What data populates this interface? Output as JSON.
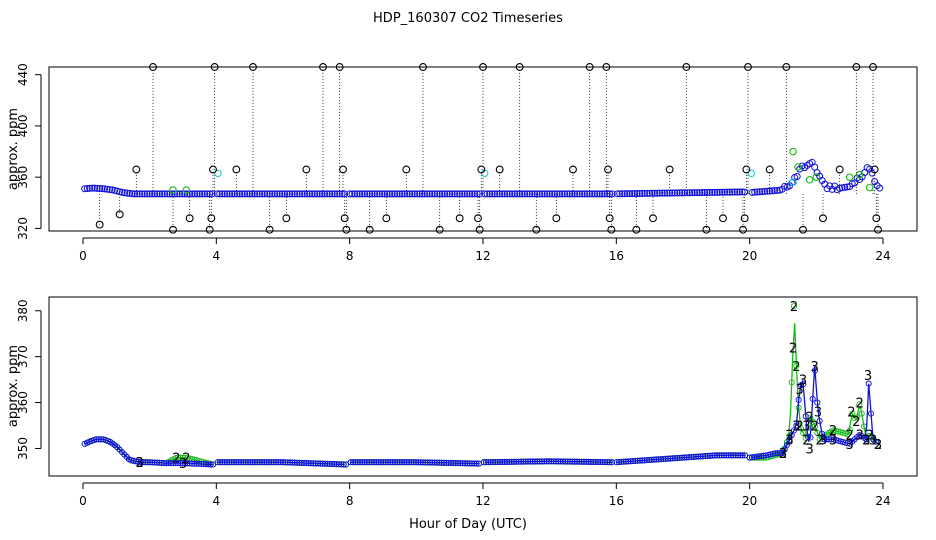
{
  "title": "HDP_160307  CO2 Timeseries",
  "xlabel": "Hour of Day (UTC)",
  "colors": {
    "black": "#000000",
    "cyan": "#22c8e0",
    "blue": "#1010d8",
    "green": "#16b816"
  },
  "chart_data": [
    {
      "type": "scatter",
      "title": "HDP_160307  CO2 Timeseries",
      "xlabel": "",
      "ylabel": "approx. ppm",
      "xlim": [
        0,
        24
      ],
      "ylim": [
        318,
        446
      ],
      "xticks": [
        "0",
        "4",
        "8",
        "12",
        "16",
        "20",
        "24"
      ],
      "yticks": [
        "320",
        "360",
        "400",
        "440"
      ],
      "grid": false,
      "legend": "none",
      "series": [
        {
          "marker": "circle-blue",
          "values": [
            [
              0.05,
              351
            ],
            [
              0.3,
              351.5
            ],
            [
              0.6,
              351
            ],
            [
              0.9,
              350
            ],
            [
              1.2,
              348
            ],
            [
              1.5,
              347
            ],
            [
              2,
              347
            ],
            [
              4,
              347
            ],
            [
              8,
              347
            ],
            [
              12,
              347
            ],
            [
              16,
              347
            ],
            [
              19.8,
              348.5
            ],
            [
              20,
              348
            ],
            [
              20.5,
              349
            ],
            [
              21,
              350
            ],
            [
              21.4,
              360
            ],
            [
              21.5,
              367
            ],
            [
              21.9,
              370
            ],
            [
              22.3,
              352
            ],
            [
              23,
              352
            ],
            [
              23.6,
              368
            ],
            [
              23.8,
              352
            ]
          ]
        },
        {
          "marker": "circle-black",
          "values": [
            [
              0.5,
              323
            ],
            [
              1.1,
              331
            ],
            [
              1.6,
              366
            ],
            [
              2.1,
              446
            ],
            [
              2.7,
              319
            ],
            [
              3.2,
              328
            ],
            [
              3.8,
              319
            ],
            [
              3.85,
              328
            ],
            [
              3.9,
              366
            ],
            [
              3.95,
              446
            ],
            [
              4.6,
              366
            ],
            [
              5.1,
              446
            ],
            [
              5.6,
              319
            ],
            [
              6.1,
              328
            ],
            [
              6.7,
              366
            ],
            [
              7.2,
              446
            ],
            [
              7.7,
              446
            ],
            [
              7.8,
              366
            ],
            [
              7.85,
              328
            ],
            [
              7.9,
              319
            ],
            [
              8.6,
              319
            ],
            [
              9.1,
              328
            ],
            [
              9.7,
              366
            ],
            [
              10.2,
              446
            ],
            [
              10.7,
              319
            ],
            [
              11.3,
              328
            ],
            [
              11.85,
              328
            ],
            [
              11.9,
              319
            ],
            [
              11.95,
              366
            ],
            [
              12,
              446
            ],
            [
              12.5,
              366
            ],
            [
              13.1,
              446
            ],
            [
              13.6,
              319
            ],
            [
              14.2,
              328
            ],
            [
              14.7,
              366
            ],
            [
              15.2,
              446
            ],
            [
              15.7,
              446
            ],
            [
              15.75,
              366
            ],
            [
              15.8,
              328
            ],
            [
              15.85,
              319
            ],
            [
              16.6,
              319
            ],
            [
              17.1,
              328
            ],
            [
              17.6,
              366
            ],
            [
              18.1,
              446
            ],
            [
              18.7,
              319
            ],
            [
              19.2,
              328
            ],
            [
              19.8,
              319
            ],
            [
              19.85,
              328
            ],
            [
              19.9,
              366
            ],
            [
              19.95,
              446
            ],
            [
              20.6,
              366
            ],
            [
              21.1,
              446
            ],
            [
              21.6,
              319
            ],
            [
              22.2,
              328
            ],
            [
              22.7,
              366
            ],
            [
              23.2,
              446
            ],
            [
              23.7,
              446
            ],
            [
              23.75,
              366
            ],
            [
              23.8,
              328
            ],
            [
              23.85,
              319
            ]
          ]
        },
        {
          "marker": "circle-cyan",
          "values": [
            [
              4.05,
              363
            ],
            [
              12.05,
              363
            ],
            [
              20.05,
              363
            ],
            [
              21.3,
              356
            ]
          ]
        },
        {
          "marker": "circle-green",
          "values": [
            [
              2.7,
              350
            ],
            [
              3.1,
              350
            ],
            [
              21.3,
              380
            ],
            [
              21.45,
              368
            ],
            [
              21.8,
              358
            ],
            [
              22,
              360
            ],
            [
              23,
              360
            ],
            [
              23.3,
              362
            ],
            [
              23.6,
              352
            ]
          ]
        }
      ]
    },
    {
      "type": "scatter",
      "title": "",
      "xlabel": "Hour of Day (UTC)",
      "ylabel": "approx. ppm",
      "xlim": [
        0,
        24
      ],
      "ylim": [
        344,
        383
      ],
      "xticks": [
        "0",
        "4",
        "8",
        "12",
        "16",
        "20",
        "24"
      ],
      "yticks": [
        "350",
        "360",
        "370",
        "380"
      ],
      "grid": false,
      "legend": "none",
      "series": [
        {
          "label": "3",
          "values": [
            [
              0.05,
              351
            ],
            [
              0.2,
              351.5
            ],
            [
              0.4,
              352
            ],
            [
              0.6,
              352
            ],
            [
              0.8,
              351.5
            ],
            [
              1.0,
              350.5
            ],
            [
              1.2,
              349
            ],
            [
              1.4,
              347.5
            ],
            [
              1.7,
              347
            ],
            [
              2,
              347
            ],
            [
              2.5,
              346.8
            ],
            [
              3,
              346.8
            ],
            [
              3.9,
              346.5
            ],
            [
              4,
              347
            ],
            [
              6,
              347
            ],
            [
              7.9,
              346.5
            ],
            [
              8,
              347
            ],
            [
              10,
              347
            ],
            [
              11.9,
              346.7
            ],
            [
              12,
              347
            ],
            [
              14,
              347.2
            ],
            [
              15.9,
              347
            ],
            [
              16,
              347
            ],
            [
              17,
              347.5
            ],
            [
              18,
              348
            ],
            [
              19,
              348.5
            ],
            [
              19.9,
              348.5
            ],
            [
              20,
              348
            ],
            [
              20.5,
              348.5
            ],
            [
              20.8,
              349
            ],
            [
              21,
              349
            ],
            [
              21.2,
              352
            ],
            [
              21.4,
              355
            ],
            [
              21.5,
              363
            ],
            [
              21.6,
              365
            ],
            [
              21.7,
              355
            ],
            [
              21.8,
              350
            ],
            [
              21.95,
              368
            ],
            [
              22.05,
              358
            ],
            [
              22.2,
              352
            ],
            [
              22.5,
              352
            ],
            [
              23,
              351
            ],
            [
              23.3,
              353
            ],
            [
              23.5,
              352
            ],
            [
              23.55,
              366
            ],
            [
              23.7,
              352
            ],
            [
              23.85,
              351
            ]
          ]
        },
        {
          "label": "2",
          "values": [
            [
              0.05,
              351
            ],
            [
              0.2,
              351.5
            ],
            [
              0.4,
              352
            ],
            [
              0.6,
              352
            ],
            [
              0.8,
              351.5
            ],
            [
              1.0,
              350.5
            ],
            [
              1.2,
              349
            ],
            [
              1.4,
              347.5
            ],
            [
              1.7,
              347
            ],
            [
              2,
              347
            ],
            [
              2.5,
              346.8
            ],
            [
              2.8,
              348
            ],
            [
              3.1,
              348
            ],
            [
              3.9,
              346.5
            ],
            [
              4,
              347
            ],
            [
              6,
              347
            ],
            [
              7.9,
              346.5
            ],
            [
              8,
              347
            ],
            [
              10,
              347
            ],
            [
              11.9,
              346.7
            ],
            [
              12,
              347
            ],
            [
              14,
              347.2
            ],
            [
              15.9,
              347
            ],
            [
              16,
              347
            ],
            [
              17,
              347.5
            ],
            [
              18,
              348
            ],
            [
              19,
              348.5
            ],
            [
              19.9,
              348.5
            ],
            [
              20,
              348
            ],
            [
              20.5,
              348
            ],
            [
              21,
              349
            ],
            [
              21.2,
              353
            ],
            [
              21.3,
              372
            ],
            [
              21.33,
              381
            ],
            [
              21.4,
              368
            ],
            [
              21.5,
              355
            ],
            [
              21.7,
              352
            ],
            [
              21.8,
              357
            ],
            [
              21.95,
              355
            ],
            [
              22.1,
              352
            ],
            [
              22.5,
              354
            ],
            [
              23,
              353
            ],
            [
              23.05,
              358
            ],
            [
              23.2,
              356
            ],
            [
              23.3,
              360
            ],
            [
              23.5,
              352
            ],
            [
              23.6,
              353
            ],
            [
              23.85,
              351
            ]
          ]
        }
      ]
    }
  ]
}
